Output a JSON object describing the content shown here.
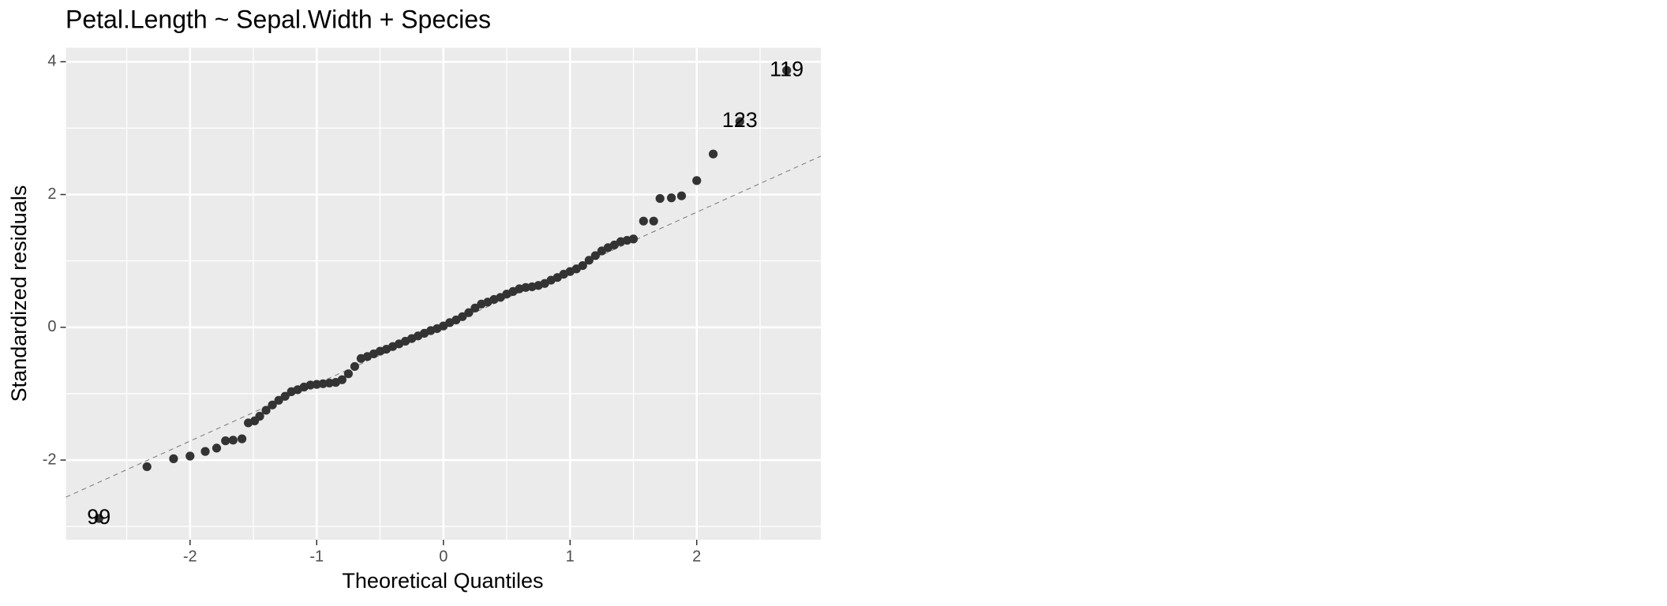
{
  "chart_data": {
    "type": "scatter",
    "title": "Petal.Length ~ Sepal.Width + Species",
    "x_label": "Theoretical Quantiles",
    "y_label": "Standardized residuals",
    "x": [
      -2.72,
      -2.34,
      -2.13,
      -2.0,
      -1.88,
      -1.79,
      -1.72,
      -1.66,
      -1.59,
      -1.54,
      -1.49,
      -1.45,
      -1.4,
      -1.35,
      -1.3,
      -1.25,
      -1.2,
      -1.15,
      -1.1,
      -1.05,
      -1.0,
      -0.95,
      -0.9,
      -0.85,
      -0.8,
      -0.75,
      -0.7,
      -0.65,
      -0.6,
      -0.55,
      -0.5,
      -0.45,
      -0.4,
      -0.35,
      -0.3,
      -0.25,
      -0.2,
      -0.15,
      -0.1,
      -0.05,
      0.0,
      0.05,
      0.1,
      0.15,
      0.2,
      0.25,
      0.3,
      0.35,
      0.4,
      0.45,
      0.5,
      0.55,
      0.6,
      0.65,
      0.7,
      0.75,
      0.8,
      0.85,
      0.9,
      0.95,
      1.0,
      1.05,
      1.1,
      1.15,
      1.2,
      1.25,
      1.3,
      1.35,
      1.4,
      1.45,
      1.5,
      1.58,
      1.66,
      1.71,
      1.8,
      1.88,
      2.0,
      2.13,
      2.34,
      2.71
    ],
    "values": [
      -2.88,
      -2.1,
      -1.98,
      -1.94,
      -1.87,
      -1.82,
      -1.71,
      -1.7,
      -1.68,
      -1.44,
      -1.41,
      -1.34,
      -1.25,
      -1.17,
      -1.1,
      -1.04,
      -0.97,
      -0.94,
      -0.9,
      -0.87,
      -0.86,
      -0.85,
      -0.84,
      -0.83,
      -0.79,
      -0.7,
      -0.59,
      -0.47,
      -0.44,
      -0.4,
      -0.36,
      -0.33,
      -0.29,
      -0.25,
      -0.21,
      -0.17,
      -0.13,
      -0.09,
      -0.05,
      -0.02,
      0.02,
      0.07,
      0.11,
      0.16,
      0.22,
      0.29,
      0.35,
      0.38,
      0.42,
      0.45,
      0.5,
      0.54,
      0.58,
      0.6,
      0.61,
      0.63,
      0.66,
      0.71,
      0.75,
      0.8,
      0.84,
      0.88,
      0.93,
      1.01,
      1.08,
      1.15,
      1.2,
      1.24,
      1.29,
      1.31,
      1.33,
      1.6,
      1.6,
      1.94,
      1.95,
      1.98,
      2.21,
      2.61,
      3.1,
      3.87
    ],
    "color": "#333333",
    "reference_line": {
      "intercept": 0.01,
      "slope": 0.862
    },
    "annotations": [
      {
        "text": "99",
        "x": -2.72,
        "y": -2.88
      },
      {
        "text": "123",
        "x": 2.34,
        "y": 3.1
      },
      {
        "text": "119",
        "x": 2.71,
        "y": 3.87
      }
    ],
    "xlim": [
      -2.98,
      2.98
    ],
    "ylim": [
      -3.2,
      4.21
    ],
    "xticks": [
      -2,
      -1,
      0,
      1,
      2
    ],
    "yticks": [
      -2,
      0,
      2,
      4
    ],
    "grid": true
  }
}
